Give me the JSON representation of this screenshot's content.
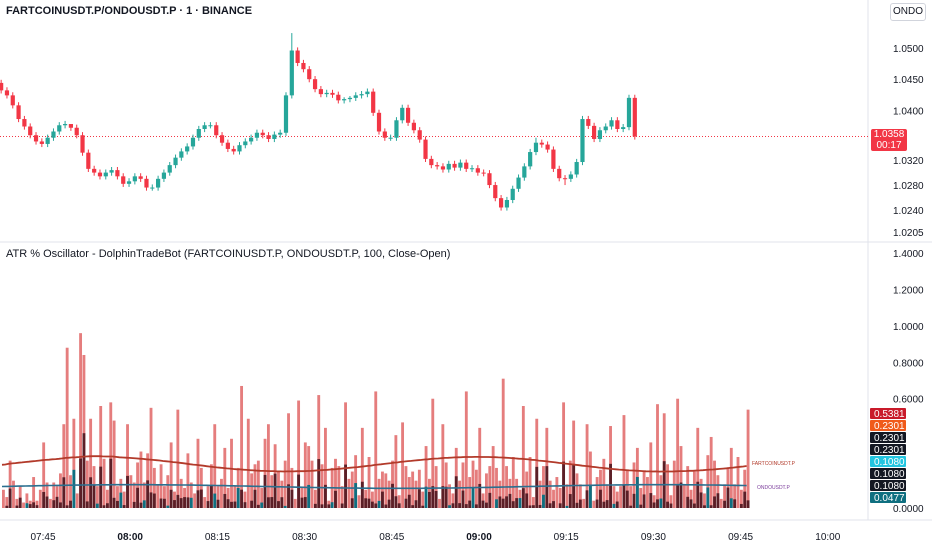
{
  "header": {
    "title": "FARTCOINUSDT.P/ONDOUSDT.P · 1 · BINANCE",
    "symbol_badge": "ONDO"
  },
  "price_panel": {
    "last_price": "1.0358",
    "countdown": "00:17"
  },
  "indicator": {
    "title": "ATR % Oscillator - DolphinTradeBot (FARTCOINUSDT.P, ONDOUSDT.P, 100, Close-Open)",
    "series_a_label": "FARTCOINUSDT.P",
    "series_b_label": "ONDOUSDT.P"
  },
  "colors": {
    "up": "#26a69a",
    "down": "#f23645",
    "ind_red": "#e06666",
    "ind_dark": "#5b1f27",
    "ind_teal": "#0f6f80",
    "line_a": "#b23a2a",
    "line_b": "#2a6f8f",
    "grid": "#f0f3fa"
  },
  "x_axis_ticks": [
    "07:45",
    "08:00",
    "08:15",
    "08:30",
    "08:45",
    "09:00",
    "09:15",
    "09:30",
    "09:45",
    "10:00"
  ],
  "chart_data": [
    {
      "type": "candlestick",
      "title": "FARTCOINUSDT.P/ONDOUSDT.P · 1 · BINANCE",
      "y_ticks": [
        "1.0500",
        "1.0450",
        "1.0400",
        "1.0320",
        "1.0280",
        "1.0240",
        "1.0205"
      ],
      "ylim": [
        1.0195,
        1.0545
      ],
      "last_price": 1.0358,
      "open": [
        1.0495,
        1.0476,
        1.0466,
        1.0444,
        1.0432,
        1.0424,
        1.0408,
        1.0386,
        1.0374,
        1.036,
        1.035,
        1.0346,
        1.0356,
        1.0366,
        1.0376,
        1.0378,
        1.0372,
        1.036,
        1.0332,
        1.0306,
        1.03,
        1.0294,
        1.03,
        1.0304,
        1.0294,
        1.0282,
        1.0286,
        1.0294,
        1.029,
        1.0276,
        1.0276,
        1.029,
        1.03,
        1.0312,
        1.0324,
        1.0334,
        1.0342,
        1.0356,
        1.037,
        1.0376,
        1.0376,
        1.036,
        1.0348,
        1.0338,
        1.0334,
        1.0344,
        1.035,
        1.0356,
        1.0364,
        1.036,
        1.0354,
        1.0361,
        1.0364,
        1.0424,
        1.0496,
        1.0476,
        1.0466,
        1.045,
        1.0434,
        1.0426,
        1.0428,
        1.0425,
        1.0416,
        1.0418,
        1.042,
        1.0424,
        1.0426,
        1.043,
        1.0396,
        1.0366,
        1.0356,
        1.0356,
        1.0384,
        1.0404,
        1.038,
        1.0368,
        1.0353,
        1.0322,
        1.0312,
        1.031,
        1.0305,
        1.0314,
        1.0308,
        1.0316,
        1.0306,
        1.0307,
        1.03,
        1.0299,
        1.028,
        1.0259,
        1.0244,
        1.0256,
        1.0274,
        1.0292,
        1.031,
        1.0333,
        1.0348,
        1.0345,
        1.0337,
        1.0306,
        1.0291,
        1.029,
        1.0297,
        1.0317,
        1.0386,
        1.0375,
        1.0354,
        1.0368,
        1.0374,
        1.0384,
        1.037,
        1.0373,
        1.042
      ],
      "close": [
        1.0476,
        1.0466,
        1.0444,
        1.0432,
        1.0424,
        1.0408,
        1.0386,
        1.0374,
        1.036,
        1.035,
        1.0346,
        1.0356,
        1.0366,
        1.0376,
        1.0378,
        1.0372,
        1.036,
        1.0332,
        1.0306,
        1.03,
        1.0294,
        1.03,
        1.0304,
        1.0294,
        1.0282,
        1.0286,
        1.0294,
        1.029,
        1.0276,
        1.0276,
        1.029,
        1.03,
        1.0312,
        1.0324,
        1.0334,
        1.0342,
        1.0356,
        1.037,
        1.0376,
        1.0376,
        1.036,
        1.0348,
        1.0338,
        1.0334,
        1.0344,
        1.035,
        1.0356,
        1.0364,
        1.036,
        1.0354,
        1.0361,
        1.0364,
        1.0424,
        1.0496,
        1.0476,
        1.0466,
        1.045,
        1.0434,
        1.0426,
        1.0428,
        1.0425,
        1.0416,
        1.0418,
        1.042,
        1.0424,
        1.0426,
        1.043,
        1.0396,
        1.0366,
        1.0356,
        1.0356,
        1.0384,
        1.0404,
        1.038,
        1.0368,
        1.0353,
        1.0322,
        1.0312,
        1.031,
        1.0305,
        1.0314,
        1.0308,
        1.0316,
        1.0306,
        1.0307,
        1.03,
        1.0299,
        1.028,
        1.0259,
        1.0244,
        1.0256,
        1.0274,
        1.0292,
        1.031,
        1.0333,
        1.0348,
        1.0345,
        1.0337,
        1.0306,
        1.0291,
        1.029,
        1.0297,
        1.0317,
        1.0386,
        1.0375,
        1.0354,
        1.0368,
        1.0374,
        1.0384,
        1.037,
        1.0373,
        1.042,
        1.0358
      ],
      "high": [
        1.0502,
        1.0481,
        1.0471,
        1.0449,
        1.0437,
        1.0429,
        1.0413,
        1.0391,
        1.0379,
        1.0365,
        1.0355,
        1.0361,
        1.0371,
        1.0381,
        1.0383,
        1.0377,
        1.0377,
        1.0365,
        1.0337,
        1.0311,
        1.0305,
        1.0305,
        1.0309,
        1.0309,
        1.0299,
        1.0291,
        1.0299,
        1.0299,
        1.0295,
        1.0281,
        1.0295,
        1.0305,
        1.0317,
        1.0329,
        1.0339,
        1.0347,
        1.0361,
        1.0375,
        1.0381,
        1.0381,
        1.0381,
        1.0365,
        1.0353,
        1.0343,
        1.0349,
        1.0355,
        1.0361,
        1.0369,
        1.0369,
        1.0365,
        1.0366,
        1.0369,
        1.0429,
        1.0524,
        1.0501,
        1.0481,
        1.0471,
        1.0455,
        1.0439,
        1.0433,
        1.0433,
        1.043,
        1.0421,
        1.0423,
        1.0429,
        1.0431,
        1.0435,
        1.0435,
        1.0401,
        1.0371,
        1.0361,
        1.0389,
        1.0409,
        1.0409,
        1.0385,
        1.0373,
        1.0358,
        1.0327,
        1.0317,
        1.0315,
        1.0319,
        1.0319,
        1.0321,
        1.0321,
        1.0312,
        1.0312,
        1.0305,
        1.0304,
        1.0285,
        1.0264,
        1.0261,
        1.0279,
        1.0297,
        1.0315,
        1.0338,
        1.0356,
        1.0353,
        1.035,
        1.0342,
        1.0311,
        1.0296,
        1.0302,
        1.0322,
        1.0391,
        1.0391,
        1.038,
        1.0373,
        1.0379,
        1.0389,
        1.0389,
        1.0378,
        1.0425,
        1.0425
      ],
      "low": [
        1.0471,
        1.0461,
        1.0439,
        1.0427,
        1.0419,
        1.0403,
        1.0381,
        1.0369,
        1.0355,
        1.0345,
        1.0341,
        1.0341,
        1.0351,
        1.0361,
        1.0371,
        1.0367,
        1.0355,
        1.0327,
        1.0301,
        1.0295,
        1.0289,
        1.0289,
        1.0295,
        1.0289,
        1.0277,
        1.0277,
        1.0281,
        1.0285,
        1.0271,
        1.0271,
        1.0271,
        1.0285,
        1.0295,
        1.0307,
        1.0319,
        1.0329,
        1.0337,
        1.0351,
        1.0365,
        1.0371,
        1.0355,
        1.0343,
        1.0333,
        1.0329,
        1.0329,
        1.0339,
        1.0345,
        1.0351,
        1.0355,
        1.0349,
        1.0349,
        1.0356,
        1.0359,
        1.0419,
        1.0471,
        1.0461,
        1.0445,
        1.0429,
        1.0421,
        1.0421,
        1.042,
        1.0411,
        1.0411,
        1.0413,
        1.0415,
        1.0419,
        1.0421,
        1.0391,
        1.0361,
        1.0351,
        1.0351,
        1.0351,
        1.0379,
        1.0375,
        1.0363,
        1.0348,
        1.0317,
        1.0307,
        1.0305,
        1.03,
        1.03,
        1.0303,
        1.0303,
        1.0301,
        1.0301,
        1.0295,
        1.0294,
        1.0275,
        1.0254,
        1.0239,
        1.0239,
        1.0251,
        1.0269,
        1.0287,
        1.0305,
        1.0328,
        1.034,
        1.0332,
        1.0301,
        1.0286,
        1.028,
        1.0285,
        1.0292,
        1.0312,
        1.037,
        1.0349,
        1.0349,
        1.0363,
        1.0369,
        1.0365,
        1.0365,
        1.0368,
        1.0353
      ]
    },
    {
      "type": "bar",
      "title": "ATR % Oscillator - DolphinTradeBot (FARTCOINUSDT.P, ONDOUSDT.P, 100, Close-Open)",
      "y_ticks": [
        "1.4000",
        "1.2000",
        "1.0000",
        "0.8000",
        "0.6000",
        "0.0000"
      ],
      "ylim": [
        0,
        1.4
      ],
      "value_labels": [
        "0.5381",
        "0.2301",
        "0.2301",
        "0.2301",
        "0.1080",
        "0.1080",
        "0.1080",
        "0.0477"
      ],
      "series": [
        {
          "name": "FARTCOINUSDT.P",
          "values": [
            0.1,
            0.06,
            0.26,
            0.15,
            0.05,
            0.12,
            0.03,
            0.08,
            0.04,
            0.17,
            0.04,
            0.1,
            0.36,
            0.14,
            0.05,
            0.14,
            0.12,
            0.19,
            0.46,
            0.88,
            0.18,
            0.49,
            0.08,
            0.96,
            0.84,
            0.26,
            0.49,
            0.23,
            0.12,
            0.56,
            0.27,
            0.1,
            0.58,
            0.48,
            0.12,
            0.16,
            0.09,
            0.46,
            0.18,
            0.14,
            0.25,
            0.31,
            0.14,
            0.3,
            0.55,
            0.22,
            0.13,
            0.24,
            0.12,
            0.18,
            0.36,
            0.09,
            0.54,
            0.16,
            0.11,
            0.3,
            0.14,
            0.08,
            0.38,
            0.22,
            0.06,
            0.12,
            0.24,
            0.46,
            0.12,
            0.16,
            0.33,
            0.11,
            0.38,
            0.12,
            0.22,
            0.67,
            0.09,
            0.49,
            0.19,
            0.24,
            0.26,
            0.11,
            0.38,
            0.46,
            0.18,
            0.35,
            0.2,
            0.15,
            0.26,
            0.52,
            0.22,
            0.05,
            0.59,
            0.11,
            0.36,
            0.34,
            0.26,
            0.1,
            0.62,
            0.24,
            0.44,
            0.04,
            0.22,
            0.27,
            0.23,
            0.12,
            0.58,
            0.16,
            0.2,
            0.29,
            0.07,
            0.44,
            0.1,
            0.28,
            0.09,
            0.64,
            0.16,
            0.2,
            0.19,
            0.15,
            0.26,
            0.4,
            0.07,
            0.47,
            0.23,
            0.17,
            0.2,
            0.15,
            0.21,
            0.09,
            0.34,
            0.16,
            0.6,
            0.23,
            0.05,
            0.46,
            0.25,
            0.13,
            0.08,
            0.33,
            0.15,
            0.25,
            0.64,
            0.17,
            0.26,
            0.21,
            0.44,
            0.08,
            0.19,
            0.23,
            0.34,
            0.22,
            0.15,
            0.71,
            0.23,
            0.16,
            0.28,
            0.16,
            0.1,
            0.56,
            0.2,
            0.28,
            0.06,
            0.49,
            0.15,
            0.23,
            0.44,
            0.15,
            0.1,
            0.17,
            0.11,
            0.58,
            0.13,
            0.26,
            0.48,
            0.19,
            0.13,
            0.05,
            0.46,
            0.31,
            0.04,
            0.17,
            0.21,
            0.27,
            0.13,
            0.45,
            0.12,
            0.09,
            0.12,
            0.51,
            0.21,
            0.12,
            0.25,
            0.33,
            0.11,
            0.2,
            0.17,
            0.36,
            0.07,
            0.57,
            0.18,
            0.52,
            0.24,
            0.07,
            0.26,
            0.6,
            0.34,
            0.13,
            0.23,
            0.1,
            0.2,
            0.44,
            0.16,
            0.08,
            0.29,
            0.39,
            0.26,
            0.18,
            0.05,
            0.13,
            0.22,
            0.33,
            0.13,
            0.28,
            0.1,
            0.21,
            0.54
          ]
        },
        {
          "name": "ONDOUSDT.P",
          "values": []
        }
      ]
    }
  ]
}
